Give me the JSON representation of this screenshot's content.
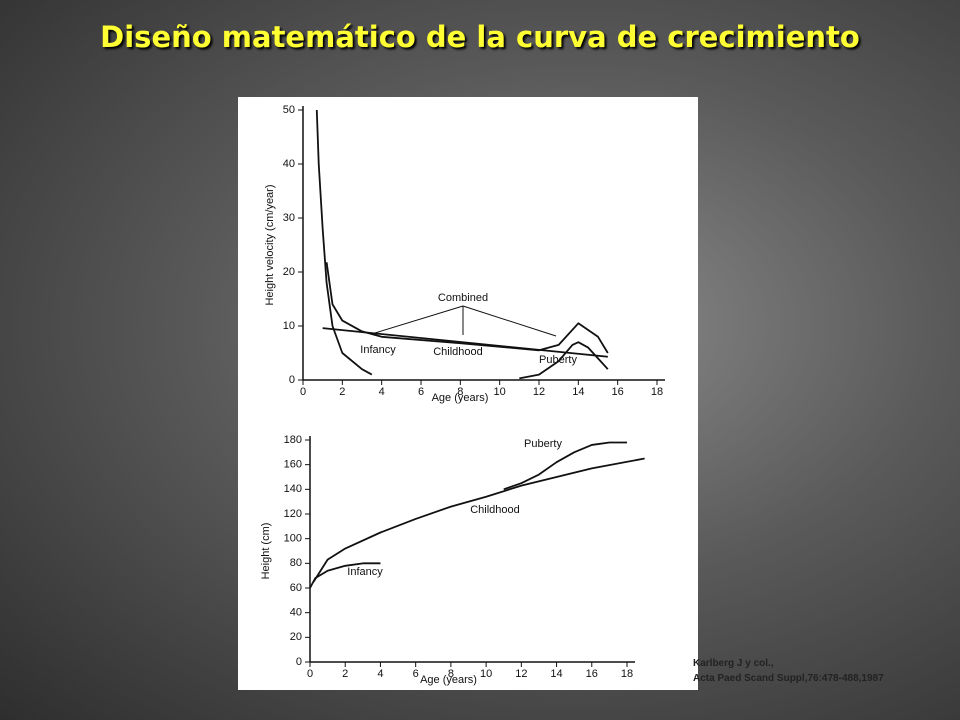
{
  "slide_title": "Diseño matemático de la curva de crecimiento",
  "citation": [
    "Karlberg J y col.,",
    "Acta Paed Scand Suppl,76:478-488,1987"
  ],
  "chart_data": [
    {
      "type": "line",
      "x_label": "Age (years)",
      "y_label": "Height velocity (cm/year)",
      "xlim": [
        0,
        18
      ],
      "xticks": [
        0,
        2,
        4,
        6,
        8,
        10,
        12,
        14,
        16,
        18
      ],
      "ylim": [
        0,
        50
      ],
      "yticks": [
        0,
        10,
        20,
        30,
        40,
        50
      ],
      "annotations": [
        "Combined"
      ],
      "series": [
        {
          "name": "Infancy",
          "color": "#111111",
          "x": [
            0.7,
            0.8,
            1,
            1.2,
            1.5,
            2,
            3,
            3.5
          ],
          "values": [
            50,
            40,
            28,
            18,
            10,
            5,
            2,
            1
          ]
        },
        {
          "name": "Childhood",
          "color": "#111111",
          "x": [
            1,
            15.5
          ],
          "values": [
            9.6,
            4.3
          ]
        },
        {
          "name": "Puberty",
          "color": "#111111",
          "x": [
            11,
            12,
            13,
            13.7,
            14,
            14.5,
            15,
            15.5
          ],
          "values": [
            0.3,
            1,
            3.5,
            6.5,
            7,
            6,
            4,
            2
          ]
        },
        {
          "name": null,
          "color": "#111111",
          "x": [
            1.2,
            1.5,
            2,
            3,
            4,
            8,
            12,
            13,
            14,
            15,
            15.5
          ],
          "values": [
            21.8,
            14,
            11,
            9,
            8,
            6.8,
            5.5,
            6.5,
            10.5,
            8,
            5
          ]
        }
      ]
    },
    {
      "type": "line",
      "x_label": "Age (years)",
      "y_label": "Height (cm)",
      "xlim": [
        0,
        18
      ],
      "xticks": [
        0,
        2,
        4,
        6,
        8,
        10,
        12,
        14,
        16,
        18
      ],
      "ylim": [
        0,
        180
      ],
      "yticks": [
        0,
        20,
        40,
        60,
        80,
        100,
        120,
        140,
        160,
        180
      ],
      "series": [
        {
          "name": "Puberty",
          "color": "#111111",
          "x": [
            11,
            12,
            13,
            14,
            15,
            16,
            17,
            18
          ],
          "values": [
            140,
            145,
            152,
            162,
            170,
            176,
            178,
            178
          ]
        },
        {
          "name": "Childhood",
          "color": "#111111",
          "x": [
            0.2,
            1,
            2,
            4,
            6,
            8,
            10,
            12,
            14,
            16,
            19
          ],
          "values": [
            65,
            83,
            92,
            105,
            116,
            126,
            134,
            143,
            150,
            157,
            165
          ]
        },
        {
          "name": "Infancy",
          "color": "#111111",
          "x": [
            0,
            0.3,
            1,
            2,
            3,
            4
          ],
          "values": [
            60,
            68,
            74,
            78,
            80,
            80
          ]
        }
      ]
    }
  ]
}
